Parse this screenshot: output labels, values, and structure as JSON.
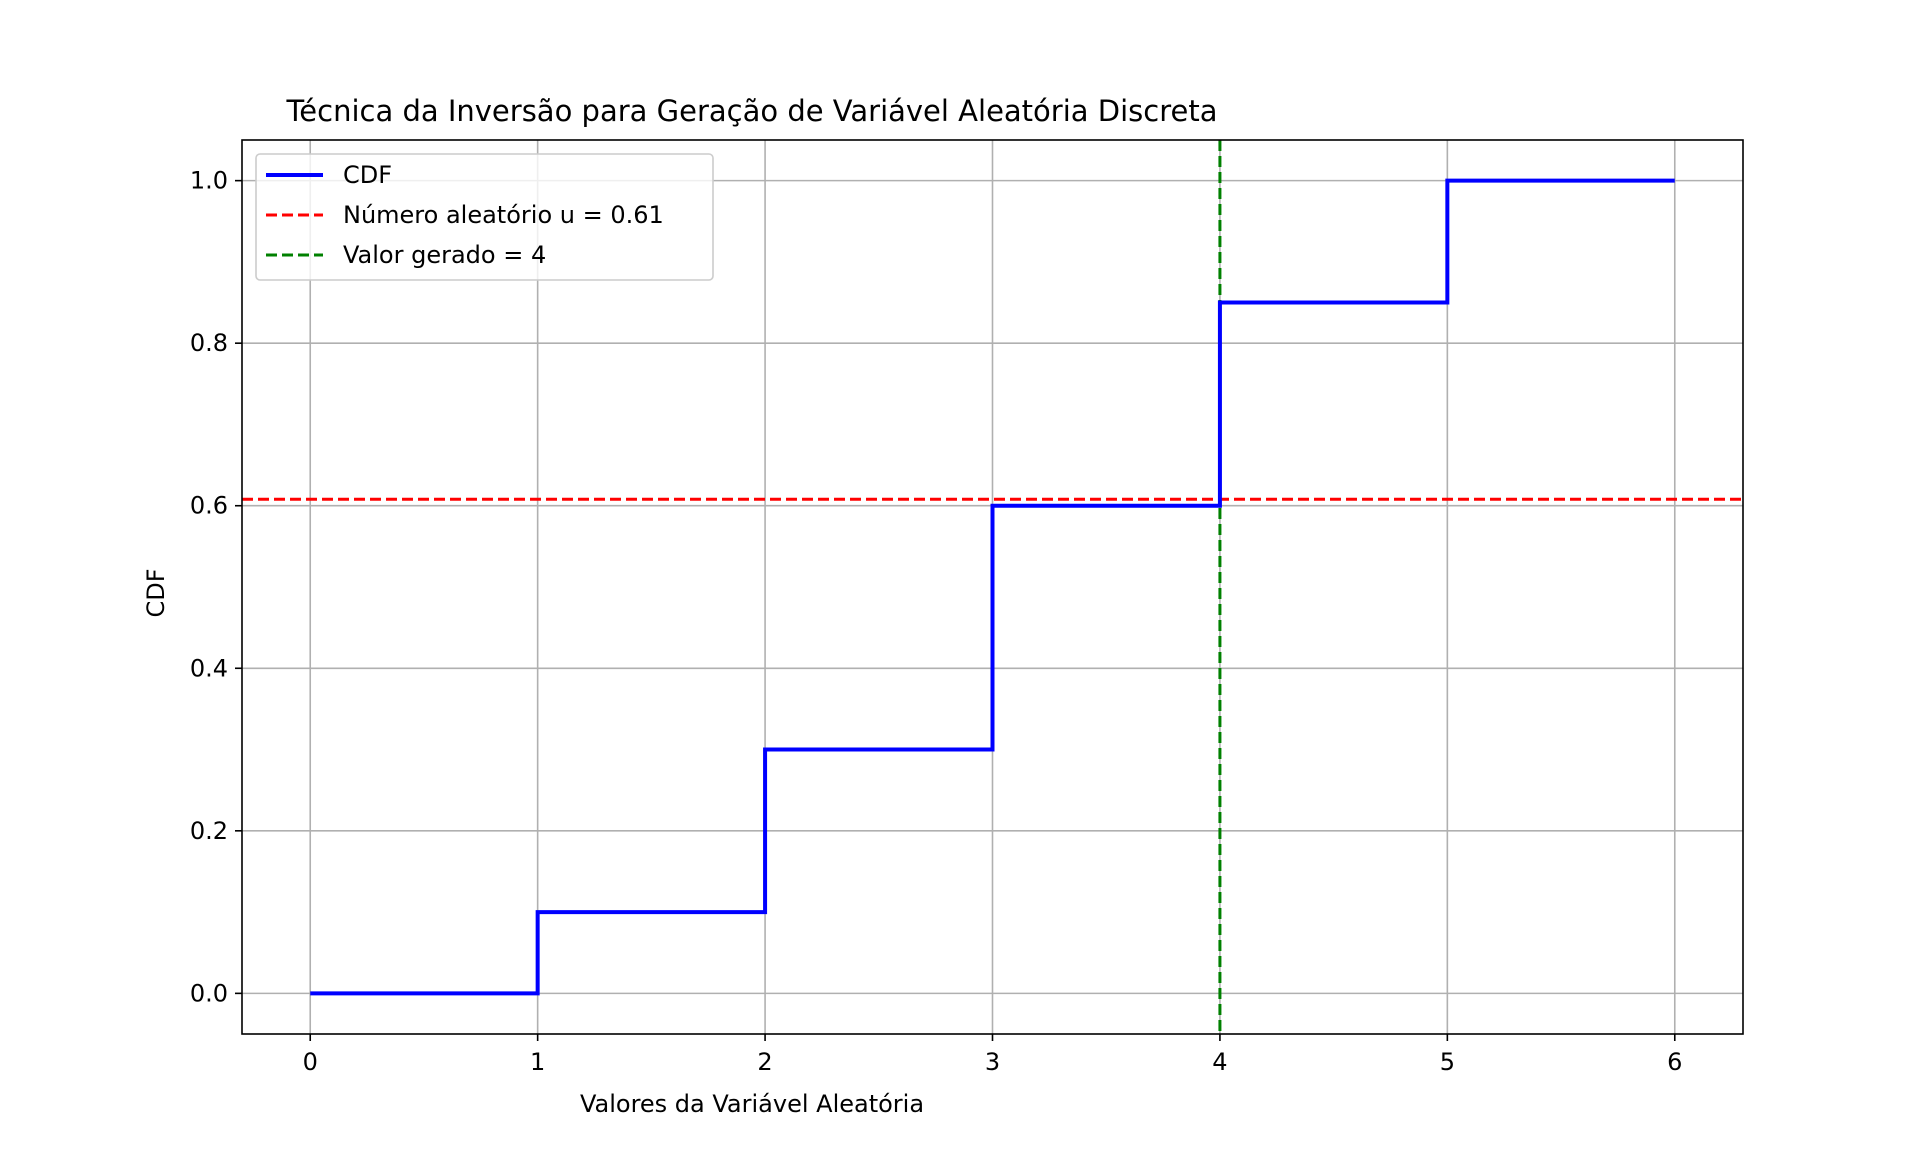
{
  "chart_data": {
    "type": "line",
    "title": "Técnica da Inversão para Geração de Variável Aleatória Discreta",
    "xlabel": "Valores da Variável Aleatória",
    "ylabel": "CDF",
    "xlim": [
      -0.3,
      6.3
    ],
    "ylim": [
      -0.05,
      1.05
    ],
    "xticks": [
      0,
      1,
      2,
      3,
      4,
      5,
      6
    ],
    "yticks": [
      0.0,
      0.2,
      0.4,
      0.6,
      0.8,
      1.0
    ],
    "xtick_labels": [
      "0",
      "1",
      "2",
      "3",
      "4",
      "5",
      "6"
    ],
    "ytick_labels": [
      "0.0",
      "0.2",
      "0.4",
      "0.6",
      "0.8",
      "1.0"
    ],
    "grid": true,
    "legend_position": "top-left",
    "series": [
      {
        "name": "CDF",
        "style": "step-post",
        "color": "#0000ff",
        "x": [
          0,
          1,
          2,
          3,
          4,
          5,
          6
        ],
        "y": [
          0.0,
          0.1,
          0.3,
          0.6,
          0.85,
          1.0,
          1.0
        ]
      }
    ],
    "reference_lines": [
      {
        "name": "Número aleatório u = 0.61",
        "orientation": "horizontal",
        "value": 0.608,
        "color": "#ff0000",
        "style": "dashed"
      },
      {
        "name": "Valor gerado = 4",
        "orientation": "vertical",
        "value": 4,
        "color": "#008000",
        "style": "dashed"
      }
    ]
  }
}
